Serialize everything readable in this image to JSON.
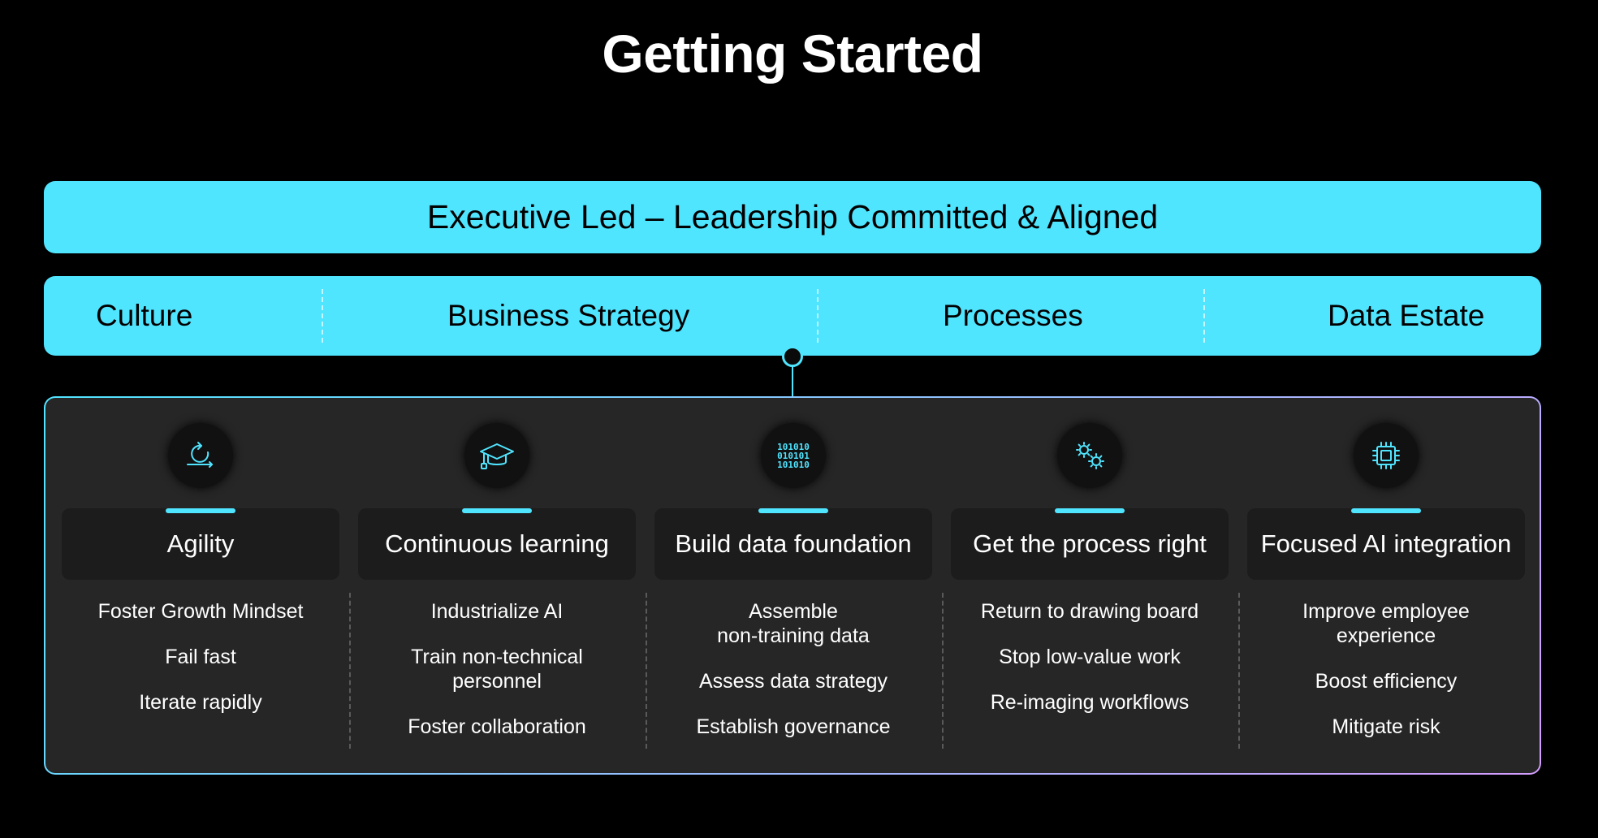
{
  "title": "Getting Started",
  "executive_bar": "Executive Led – Leadership Committed & Aligned",
  "pillars": [
    "Culture",
    "Business Strategy",
    "Processes",
    "Data Estate"
  ],
  "columns": [
    {
      "icon": "agile-cycle-icon",
      "heading": "Agility",
      "items": [
        "Foster Growth Mindset",
        "Fail fast",
        "Iterate rapidly"
      ]
    },
    {
      "icon": "graduation-cap-icon",
      "heading": "Continuous learning",
      "items": [
        "Industrialize AI",
        "Train non-technical\npersonnel",
        "Foster collaboration"
      ]
    },
    {
      "icon": "binary-data-icon",
      "heading": "Build data foundation",
      "items": [
        "Assemble\nnon-training data",
        "Assess data strategy",
        "Establish governance"
      ]
    },
    {
      "icon": "gears-icon",
      "heading": "Get the process right",
      "items": [
        "Return to drawing board",
        "Stop low-value work",
        "Re-imaging workflows"
      ]
    },
    {
      "icon": "processor-chip-icon",
      "heading": "Focused AI integration",
      "items": [
        "Improve employee\nexperience",
        "Boost efficiency",
        "Mitigate risk"
      ]
    }
  ],
  "colors": {
    "accent": "#50E5FF",
    "background": "#000000",
    "panel": "#262626",
    "card": "#1C1C1C",
    "panel_border_end": "#D59DFF"
  }
}
